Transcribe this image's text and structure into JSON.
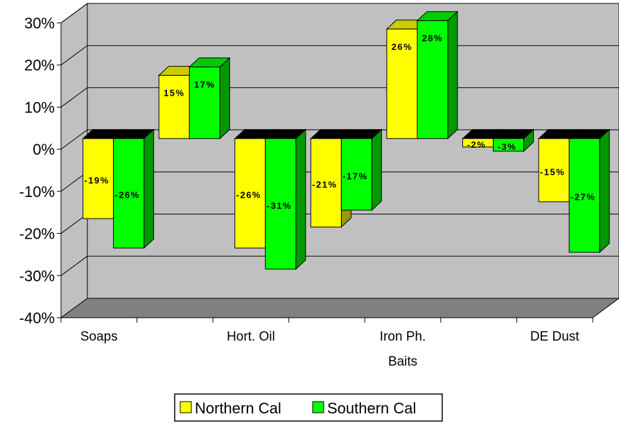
{
  "chart_data": {
    "type": "bar",
    "title": "",
    "xlabel": "",
    "ylabel": "",
    "ylim": [
      -40,
      30
    ],
    "y_ticks": [
      -40,
      -30,
      -20,
      -10,
      0,
      10,
      20,
      30
    ],
    "y_tick_labels": [
      "-40%",
      "-30%",
      "-20%",
      "-10%",
      "0%",
      "10%",
      "20%",
      "30%"
    ],
    "categories": [
      "Soaps",
      "",
      "Hort. Oil",
      "",
      "Iron Ph. Baits",
      "",
      "DE Dust"
    ],
    "series": [
      {
        "name": "Northern Cal",
        "values": [
          -19,
          15,
          -26,
          -21,
          26,
          -2,
          -15
        ],
        "labels": [
          "-19%",
          "15%",
          "-26%",
          "-21%",
          "26%",
          "-2%",
          "-15%"
        ]
      },
      {
        "name": "Southern Cal",
        "values": [
          -26,
          17,
          -31,
          -17,
          28,
          -3,
          -27
        ],
        "labels": [
          "-26%",
          "17%",
          "-31%",
          "-17%",
          "28%",
          "-3%",
          "-27%"
        ]
      }
    ],
    "grid": true,
    "three_d": true,
    "legend_position": "bottom"
  },
  "colors": {
    "northern_face": "#FFFF00",
    "northern_side": "#999900",
    "northern_top": "#CCCC00",
    "southern_face": "#00FF00",
    "southern_side": "#009900",
    "southern_top": "#00CC00",
    "back_wall": "#C0C0C0",
    "floor": "#808080",
    "zero_top": "#000000"
  }
}
